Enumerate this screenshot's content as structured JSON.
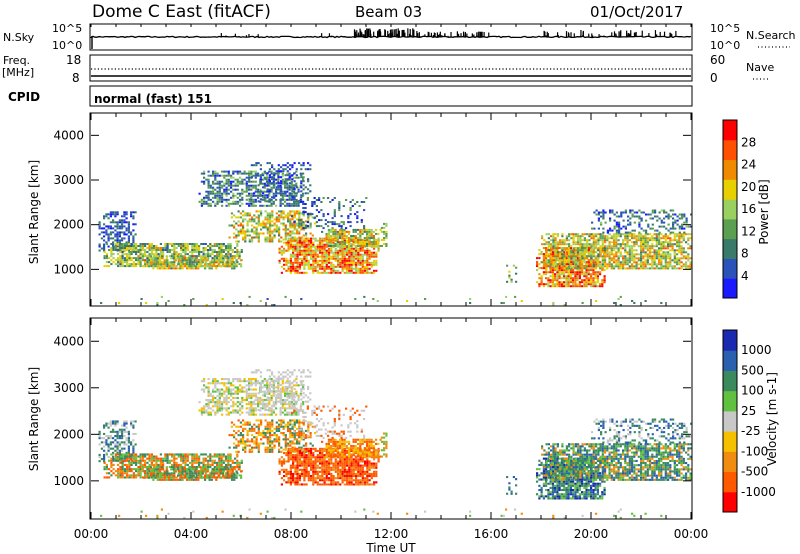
{
  "header": {
    "title": "Dome C East (fitACF)",
    "beam": "Beam 03",
    "date": "01/Oct/2017"
  },
  "top_panels": {
    "nsky_label": "N.Sky",
    "nsky_ticks": [
      "10^5",
      "10^0"
    ],
    "nsearch_label": "N.Search",
    "nsearch_ticks": [
      "10^5",
      "10^0"
    ],
    "freq_label_1": "Freq.",
    "freq_label_2": "[MHz]",
    "freq_ticks": [
      "18",
      "8"
    ],
    "nave_label": "Nave",
    "nave_ticks": [
      "60",
      "0"
    ],
    "cpid_label": "CPID",
    "cpid_value": "normal (fast) 151"
  },
  "colors": {
    "power": [
      "#1a1aff",
      "#2a52b8",
      "#3a7a6a",
      "#5aa050",
      "#9ad060",
      "#e8d000",
      "#f08a00",
      "#ff5000",
      "#ff0000"
    ],
    "velocity": [
      "#ff0000",
      "#ff5a00",
      "#f08c10",
      "#f5c000",
      "#c8c8c8",
      "#60c040",
      "#3a8a5e",
      "#2a60b0",
      "#1a2ab0"
    ]
  },
  "chart_data": [
    {
      "type": "heatmap",
      "name": "power",
      "xlabel": "Time UT",
      "ylabel": "Slant Range [km]",
      "xlim_hours": [
        0,
        24
      ],
      "ylim_km": [
        180,
        4500
      ],
      "x_ticks": [
        "00:00",
        "04:00",
        "08:00",
        "12:00",
        "16:00",
        "20:00",
        "00:00"
      ],
      "y_ticks": [
        "1000",
        "2000",
        "3000",
        "4000"
      ],
      "colorbar_label": "Power [dB]",
      "colorbar_ticks": [
        "28",
        "24",
        "20",
        "16",
        "12",
        "8",
        "4"
      ],
      "colorbar_range": [
        0,
        32
      ]
    },
    {
      "type": "heatmap",
      "name": "velocity",
      "xlabel": "Time UT",
      "ylabel": "Slant Range [km]",
      "xlim_hours": [
        0,
        24
      ],
      "ylim_km": [
        180,
        4500
      ],
      "x_ticks": [
        "00:00",
        "04:00",
        "08:00",
        "12:00",
        "16:00",
        "20:00",
        "00:00"
      ],
      "y_ticks": [
        "1000",
        "2000",
        "3000",
        "4000"
      ],
      "colorbar_label": "Velocity [m s-1]",
      "colorbar_ticks": [
        "1000",
        "500",
        "100",
        "25",
        "-25",
        "-100",
        "-500",
        "-1000"
      ]
    }
  ]
}
